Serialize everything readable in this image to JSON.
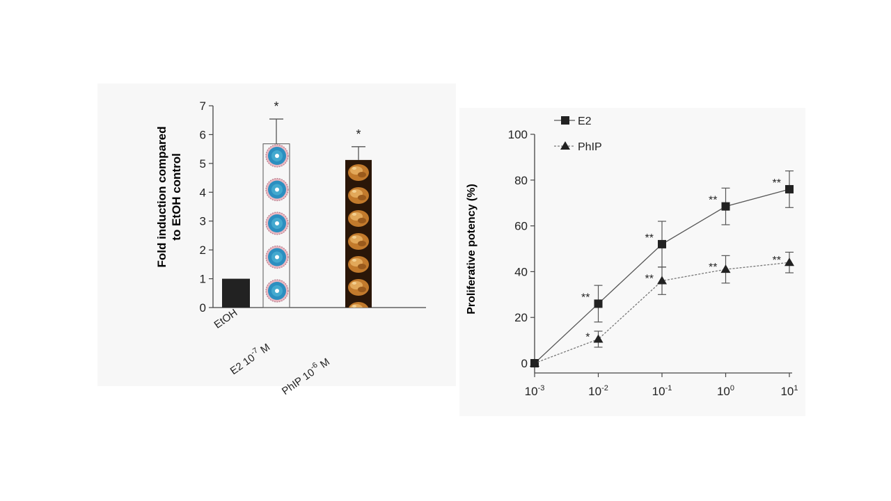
{
  "chart_data": [
    {
      "type": "bar",
      "ylabel": [
        "Fold induction compared",
        "to EtOH control"
      ],
      "ylim": [
        0,
        7
      ],
      "yticks": [
        0,
        1,
        2,
        3,
        4,
        5,
        6,
        7
      ],
      "categories": [
        {
          "base": "EtOH",
          "exp": ""
        },
        {
          "base": "E2 10",
          "exp": "-7",
          "unit": " M"
        },
        {
          "base": "PhIP 10",
          "exp": "-6",
          "unit": " M"
        }
      ],
      "values": [
        1.0,
        5.68,
        5.12
      ],
      "errors": [
        0,
        0.86,
        0.46
      ],
      "significance": [
        "",
        "*",
        "*"
      ],
      "bar_styles": [
        "solid-dark",
        "cell-icons",
        "chicken-photo"
      ],
      "colors": {
        "dark": "#222222",
        "cell_outer": "#2f8fbf",
        "cell_ring": "#c8a0a8",
        "chicken": "#c98a3a"
      }
    },
    {
      "type": "line",
      "ylabel": "Proliferative potency (%)",
      "ylim": [
        0,
        100
      ],
      "yticks": [
        0,
        20,
        40,
        60,
        80,
        100
      ],
      "xscale": "log",
      "x": [
        0.001,
        0.01,
        0.1,
        1,
        10
      ],
      "xticks": [
        {
          "base": "10",
          "exp": "-3"
        },
        {
          "base": "10",
          "exp": "-2"
        },
        {
          "base": "10",
          "exp": "-1"
        },
        {
          "base": "10",
          "exp": "0"
        },
        {
          "base": "10",
          "exp": "1"
        }
      ],
      "legend_position": "top-left",
      "series": [
        {
          "name": "E2",
          "marker": "square",
          "line": "solid",
          "values": [
            0,
            26,
            52,
            68.5,
            76
          ],
          "errors": [
            0,
            8,
            10,
            8,
            8
          ],
          "significance": [
            "",
            "**",
            "**",
            "**",
            "**"
          ]
        },
        {
          "name": "PhIP",
          "marker": "triangle",
          "line": "dashed",
          "values": [
            0,
            10.5,
            36,
            41,
            44
          ],
          "errors": [
            0,
            3.5,
            6,
            6,
            4.5
          ],
          "significance": [
            "",
            "*",
            "**",
            "**",
            "**"
          ]
        }
      ]
    }
  ]
}
